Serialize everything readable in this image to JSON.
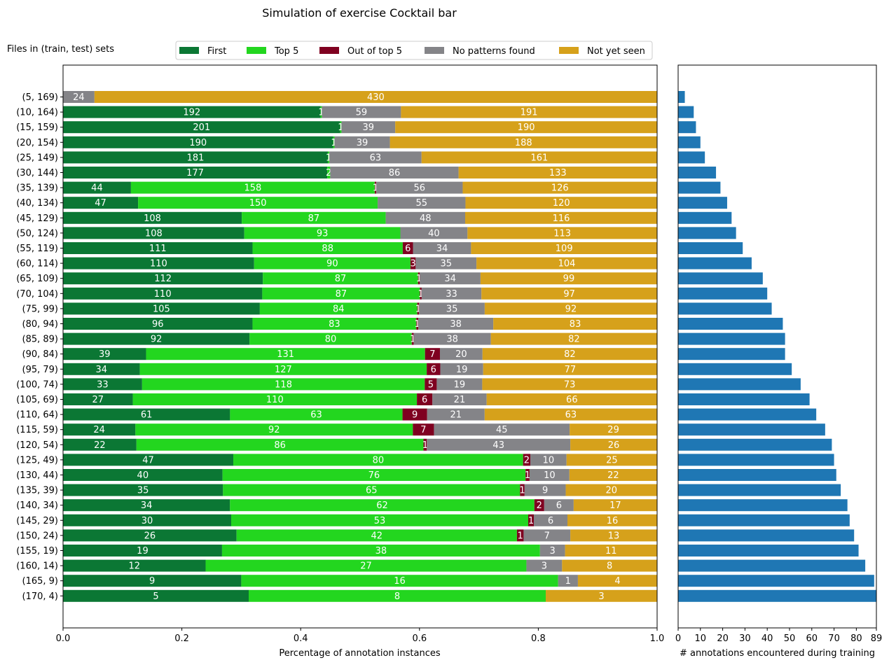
{
  "chart_data": [
    {
      "type": "bar",
      "orientation": "horizontal",
      "stacked": true,
      "normalized": true,
      "title": "Simulation of exercise Cocktail bar",
      "subtitle": "Files in (train, test) sets",
      "xlabel": "Percentage of annotation instances",
      "ylabel": "",
      "xlim": [
        0,
        1.0
      ],
      "xticks": [
        "0.0",
        "0.2",
        "0.4",
        "0.6",
        "0.8",
        "1.0"
      ],
      "legend_position": "top-center",
      "categories": [
        "(5, 169)",
        "(10, 164)",
        "(15, 159)",
        "(20, 154)",
        "(25, 149)",
        "(30, 144)",
        "(35, 139)",
        "(40, 134)",
        "(45, 129)",
        "(50, 124)",
        "(55, 119)",
        "(60, 114)",
        "(65, 109)",
        "(70, 104)",
        "(75, 99)",
        "(80, 94)",
        "(85, 89)",
        "(90, 84)",
        "(95, 79)",
        "(100, 74)",
        "(105, 69)",
        "(110, 64)",
        "(115, 59)",
        "(120, 54)",
        "(125, 49)",
        "(130, 44)",
        "(135, 39)",
        "(140, 34)",
        "(145, 29)",
        "(150, 24)",
        "(155, 19)",
        "(160, 14)",
        "(165, 9)",
        "(170, 4)"
      ],
      "series": [
        {
          "name": "First",
          "color": "#0b7734",
          "values": [
            0,
            192,
            201,
            190,
            181,
            177,
            44,
            47,
            108,
            108,
            111,
            110,
            112,
            110,
            105,
            96,
            92,
            39,
            34,
            33,
            27,
            61,
            24,
            22,
            47,
            40,
            35,
            34,
            30,
            26,
            19,
            12,
            9,
            5
          ]
        },
        {
          "name": "Top 5",
          "color": "#23d61f",
          "values": [
            0,
            1,
            1,
            1,
            1,
            2,
            158,
            150,
            87,
            93,
            88,
            90,
            87,
            87,
            84,
            83,
            80,
            131,
            127,
            118,
            110,
            63,
            92,
            86,
            80,
            76,
            65,
            62,
            53,
            42,
            38,
            27,
            16,
            8
          ]
        },
        {
          "name": "Out of top 5",
          "color": "#7f0020",
          "values": [
            0,
            0,
            0,
            0,
            0,
            0,
            1,
            0,
            0,
            0,
            6,
            3,
            1,
            1,
            1,
            1,
            1,
            7,
            6,
            5,
            6,
            9,
            7,
            1,
            2,
            1,
            1,
            2,
            1,
            1,
            0,
            0,
            0,
            0
          ]
        },
        {
          "name": "No patterns found",
          "color": "#848488",
          "values": [
            24,
            59,
            39,
            39,
            63,
            86,
            56,
            55,
            48,
            40,
            34,
            35,
            34,
            33,
            35,
            38,
            38,
            20,
            19,
            19,
            21,
            21,
            45,
            43,
            10,
            10,
            9,
            6,
            6,
            7,
            3,
            3,
            1,
            0
          ]
        },
        {
          "name": "Not yet seen",
          "color": "#d6a11b",
          "values": [
            430,
            191,
            190,
            188,
            161,
            133,
            126,
            120,
            116,
            113,
            109,
            104,
            99,
            97,
            92,
            83,
            82,
            82,
            77,
            73,
            66,
            63,
            29,
            26,
            25,
            22,
            20,
            17,
            16,
            13,
            11,
            8,
            4,
            3
          ]
        }
      ]
    },
    {
      "type": "bar",
      "orientation": "horizontal",
      "xlabel": "# annotations encountered during training",
      "ylabel": "",
      "xlim": [
        0,
        89
      ],
      "xticks": [
        "0",
        "10",
        "20",
        "30",
        "40",
        "50",
        "60",
        "70",
        "80",
        "89"
      ],
      "color": "#1f77b4",
      "values": [
        3,
        7,
        8,
        10,
        12,
        17,
        19,
        22,
        24,
        26,
        29,
        33,
        38,
        40,
        42,
        47,
        48,
        48,
        51,
        55,
        59,
        62,
        66,
        69,
        70,
        71,
        73,
        76,
        77,
        79,
        81,
        84,
        88,
        89
      ]
    }
  ]
}
